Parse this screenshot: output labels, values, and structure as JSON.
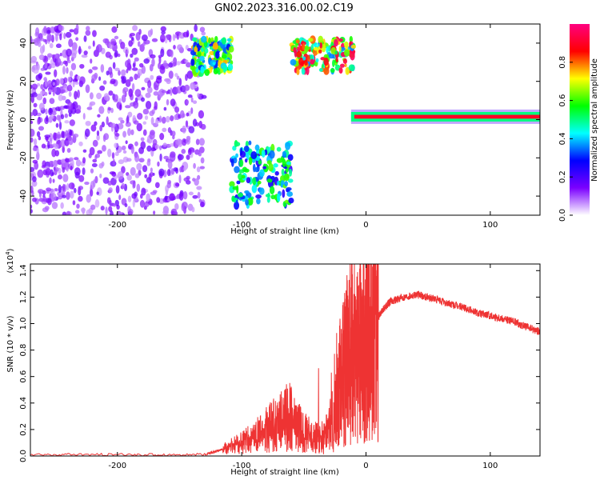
{
  "figure": {
    "title": "GN02.2023.316.00.02.C19"
  },
  "chart_data": [
    {
      "type": "heatmap",
      "xlabel": "Height of straight line (km)",
      "ylabel": "Frequency (Hz)",
      "xlim": [
        -270,
        140
      ],
      "ylim": [
        -50,
        50
      ],
      "xticks": [
        -200,
        -100,
        0,
        100
      ],
      "yticks": [
        -40,
        -20,
        0,
        20,
        40
      ],
      "colorbar": {
        "label": "Normalized spectral amplitude",
        "range": [
          0,
          1
        ],
        "ticks": [
          "0.0",
          "0.2",
          "0.4",
          "0.6",
          "0.8"
        ],
        "colormap": [
          "#ffffff",
          "#7b00ff",
          "#0000ff",
          "#00ffff",
          "#00ff00",
          "#ffff00",
          "#ff0000",
          "#ff0080"
        ]
      },
      "features": [
        {
          "name": "scattered noise",
          "x": [
            -270,
            -130
          ],
          "y": [
            -50,
            48
          ],
          "amplitude": 0.15
        },
        {
          "name": "patch",
          "x": [
            -140,
            -108
          ],
          "y": [
            24,
            42
          ],
          "amplitude": 0.55
        },
        {
          "name": "patch",
          "x": [
            -108,
            -60
          ],
          "y": [
            -45,
            -12
          ],
          "amplitude": 0.45
        },
        {
          "name": "patch",
          "x": [
            -60,
            -10
          ],
          "y": [
            25,
            42
          ],
          "amplitude": 0.7
        },
        {
          "name": "band",
          "x": [
            -12,
            140
          ],
          "y": [
            -1,
            4
          ],
          "amplitude": 0.9
        }
      ]
    },
    {
      "type": "line",
      "xlabel": "Height of straight line (km)",
      "ylabel": "SNR (10 * v/v)",
      "ylabel_exponent": "(x10",
      "ylabel_exponent_power": "4",
      "ylabel_exponent_close": ")",
      "xlim": [
        -270,
        140
      ],
      "ylim": [
        0,
        1.45
      ],
      "xticks": [
        -200,
        -100,
        0,
        100
      ],
      "yticks": [
        "0.0",
        "0.2",
        "0.4",
        "0.6",
        "0.8",
        "1.0",
        "1.2",
        "1.4"
      ],
      "series": [
        {
          "color": "#ee3333",
          "x": [
            -270,
            -200,
            -130,
            -115,
            -100,
            -90,
            -80,
            -70,
            -62,
            -55,
            -45,
            -35,
            -25,
            -20,
            -15,
            -10,
            -5,
            0,
            5,
            10,
            15,
            20,
            30,
            40,
            50,
            60,
            70,
            80,
            90,
            100,
            110,
            120,
            130,
            140
          ],
          "y": [
            0.01,
            0.01,
            0.01,
            0.05,
            0.1,
            0.14,
            0.2,
            0.25,
            0.3,
            0.22,
            0.15,
            0.12,
            0.3,
            0.6,
            0.75,
            0.85,
            0.88,
            0.9,
            0.95,
            1.05,
            1.12,
            1.17,
            1.2,
            1.22,
            1.2,
            1.17,
            1.14,
            1.12,
            1.08,
            1.06,
            1.04,
            1.01,
            0.97,
            0.94
          ]
        }
      ]
    }
  ]
}
